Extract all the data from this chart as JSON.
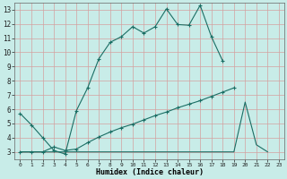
{
  "xlabel": "Humidex (Indice chaleur)",
  "bg_color": "#c8ece8",
  "line_color": "#1a6e64",
  "grid_color_major": "#d4a0a0",
  "xlim": [
    -0.5,
    23.5
  ],
  "ylim": [
    2.5,
    13.5
  ],
  "xticks": [
    0,
    1,
    2,
    3,
    4,
    5,
    6,
    7,
    8,
    9,
    10,
    11,
    12,
    13,
    14,
    15,
    16,
    17,
    18,
    19,
    20,
    21,
    22,
    23
  ],
  "yticks": [
    3,
    4,
    5,
    6,
    7,
    8,
    9,
    10,
    11,
    12,
    13
  ],
  "line1_x": [
    0,
    1,
    2,
    3,
    4,
    5,
    6,
    7,
    8,
    9,
    10,
    11,
    12,
    13,
    14,
    15,
    16,
    17,
    18
  ],
  "line1_y": [
    5.7,
    4.9,
    4.0,
    3.1,
    2.85,
    5.9,
    7.5,
    9.55,
    10.7,
    11.1,
    11.8,
    11.35,
    11.8,
    13.05,
    11.95,
    11.9,
    13.3,
    11.1,
    9.4
  ],
  "line2_x": [
    0,
    1,
    2,
    3,
    4,
    5,
    6,
    7,
    8,
    9,
    10,
    11,
    12,
    13,
    14,
    15,
    16,
    17,
    18,
    19
  ],
  "line2_y": [
    3.0,
    3.0,
    3.0,
    3.35,
    3.1,
    3.2,
    3.65,
    4.05,
    4.4,
    4.7,
    4.95,
    5.25,
    5.55,
    5.8,
    6.1,
    6.35,
    6.6,
    6.9,
    7.2,
    7.5
  ],
  "line3_x": [
    0,
    1,
    2,
    3,
    4,
    5,
    6,
    7,
    8,
    9,
    10,
    11,
    12,
    13,
    14,
    15,
    16,
    17,
    18,
    19,
    20,
    21,
    22
  ],
  "line3_y": [
    3.0,
    3.0,
    3.0,
    3.0,
    3.0,
    3.0,
    3.0,
    3.0,
    3.0,
    3.0,
    3.0,
    3.0,
    3.0,
    3.0,
    3.0,
    3.0,
    3.0,
    3.0,
    3.0,
    3.0,
    6.5,
    3.5,
    3.0
  ]
}
